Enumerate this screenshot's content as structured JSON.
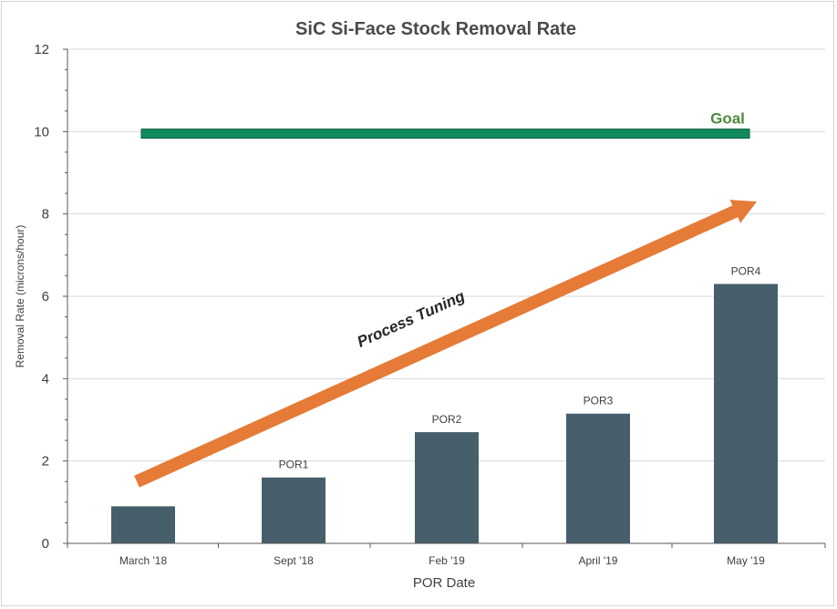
{
  "chart_data": {
    "type": "bar",
    "title": "SiC Si-Face Stock Removal Rate",
    "xlabel": "POR Date",
    "ylabel": "Removal Rate (microns/hour)",
    "ylim": [
      0,
      12
    ],
    "yticks": [
      0,
      2,
      4,
      6,
      8,
      10,
      12
    ],
    "categories": [
      "March '18",
      "Sept '18",
      "Feb '19",
      "April '19",
      "May '19"
    ],
    "values": [
      0.9,
      1.6,
      2.7,
      3.15,
      6.3
    ],
    "data_labels": [
      "",
      "POR1",
      "POR2",
      "POR3",
      "POR4"
    ],
    "grid": true,
    "goal": {
      "label": "Goal",
      "value": 9.95
    },
    "trend_arrow": {
      "label": "Process Tuning",
      "from": [
        0.0,
        1.5
      ],
      "to": [
        4.0,
        8.3
      ]
    },
    "colors": {
      "bar": "#465f6b",
      "goal": "#128a5c",
      "arrow": "#e57b37",
      "grid": "#d9d9d9"
    }
  }
}
